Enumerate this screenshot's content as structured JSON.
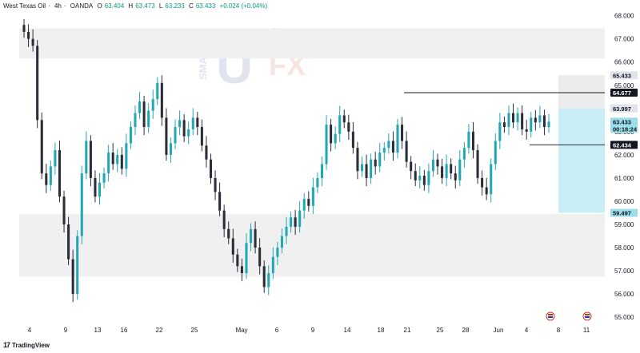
{
  "header": {
    "symbol": "West Texas Oil",
    "interval": "4h",
    "source": "OANDA",
    "o_label": "O",
    "o": "63.404",
    "h_label": "H",
    "h": "63.473",
    "l_label": "L",
    "l": "63.233",
    "c_label": "C",
    "c": "63.433",
    "change": "+0.024 (+0.04%)"
  },
  "watermark": {
    "top": "SMART",
    "word": "niver",
    "fx": "FX"
  },
  "brand": {
    "logo": "17",
    "name": "TradingView"
  },
  "colors": {
    "up": "#22a8b5",
    "down": "#2a2e39",
    "zone": "#f0f0f0",
    "tp_zone": "#c9eef5",
    "tp_zone_upper": "#ececec",
    "line": "#2a2e39"
  },
  "chart_data": {
    "type": "candlestick",
    "ylim": [
      54.8,
      68.4
    ],
    "yticks": [
      "68.000",
      "67.000",
      "66.000",
      "65.000",
      "63.000",
      "62.000",
      "61.000",
      "60.000",
      "59.000",
      "58.000",
      "57.000",
      "56.000",
      "55.000"
    ],
    "xticks": [
      "4",
      "9",
      "13",
      "16",
      "22",
      "25",
      "May",
      "6",
      "9",
      "14",
      "18",
      "21",
      "25",
      "28",
      "Jun",
      "4",
      "8",
      "11"
    ],
    "price_tags": [
      {
        "label": "65.433",
        "value": 65.43,
        "style": "gray"
      },
      {
        "label": "64.677",
        "value": 64.68,
        "style": "dark"
      },
      {
        "label": "63.997",
        "value": 64.0,
        "style": "gray"
      },
      {
        "label": "63.433",
        "value": 63.43,
        "style": "teal",
        "countdown": "00:18:24"
      },
      {
        "label": "62.434",
        "value": 62.43,
        "style": "dark"
      },
      {
        "label": "59.497",
        "value": 59.5,
        "style": "teal"
      }
    ],
    "zones": [
      {
        "from": 66.15,
        "to": 67.45
      },
      {
        "from": 56.75,
        "to": 59.45
      }
    ],
    "levels": [
      64.68,
      62.43
    ],
    "closes": [
      67.3,
      67.0,
      66.7,
      63.5,
      61.2,
      60.7,
      61.5,
      62.2,
      60.2,
      59.0,
      57.5,
      56.0,
      58.5,
      61.2,
      62.6,
      61.0,
      60.2,
      60.8,
      61.2,
      62.1,
      61.6,
      62.0,
      61.4,
      62.5,
      63.2,
      63.8,
      64.3,
      63.2,
      63.9,
      64.4,
      65.1,
      63.6,
      62.0,
      62.5,
      63.2,
      63.5,
      62.8,
      63.1,
      63.6,
      63.2,
      62.4,
      61.8,
      61.0,
      60.4,
      59.6,
      58.8,
      58.4,
      57.7,
      57.2,
      56.9,
      58.2,
      58.8,
      58.0,
      57.2,
      56.3,
      56.9,
      57.6,
      58.0,
      58.5,
      58.9,
      59.3,
      58.9,
      59.6,
      60.1,
      59.8,
      60.6,
      61.0,
      61.6,
      63.3,
      62.5,
      62.9,
      63.7,
      63.4,
      63.0,
      62.3,
      61.3,
      61.6,
      61.0,
      61.8,
      61.5,
      62.1,
      62.3,
      62.6,
      62.1,
      63.3,
      62.6,
      61.7,
      61.3,
      60.9,
      61.1,
      60.7,
      61.3,
      61.8,
      61.5,
      61.0,
      61.6,
      61.2,
      60.9,
      61.8,
      62.3,
      63.0,
      62.2,
      61.0,
      60.6,
      60.3,
      61.6,
      62.6,
      63.4,
      63.2,
      63.8,
      63.4,
      63.8,
      63.1,
      63.0,
      63.6,
      63.4,
      63.7,
      63.2,
      63.43
    ]
  }
}
